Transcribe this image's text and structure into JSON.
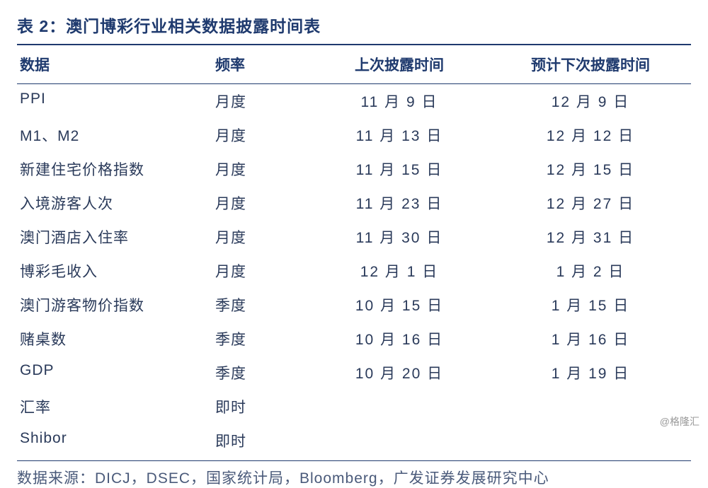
{
  "title": "表 2：澳门博彩行业相关数据披露时间表",
  "columns": {
    "data": "数据",
    "freq": "频率",
    "last": "上次披露时间",
    "next": "预计下次披露时间"
  },
  "rows": [
    {
      "data": "PPI",
      "freq": "月度",
      "last": "11 月 9 日",
      "next": "12 月 9 日"
    },
    {
      "data": "M1、M2",
      "freq": "月度",
      "last": "11 月 13 日",
      "next": "12 月 12 日"
    },
    {
      "data": "新建住宅价格指数",
      "freq": "月度",
      "last": "11 月 15 日",
      "next": "12 月 15 日"
    },
    {
      "data": "入境游客人次",
      "freq": "月度",
      "last": "11 月 23 日",
      "next": "12 月 27 日"
    },
    {
      "data": "澳门酒店入住率",
      "freq": "月度",
      "last": "11 月 30 日",
      "next": "12 月 31 日"
    },
    {
      "data": "博彩毛收入",
      "freq": "月度",
      "last": "12 月 1 日",
      "next": "1 月 2 日"
    },
    {
      "data": "澳门游客物价指数",
      "freq": "季度",
      "last": "10 月 15 日",
      "next": "1 月 15 日"
    },
    {
      "data": "赌桌数",
      "freq": "季度",
      "last": "10 月 16 日",
      "next": "1 月 16 日"
    },
    {
      "data": "GDP",
      "freq": "季度",
      "last": "10 月 20 日",
      "next": "1 月 19 日"
    },
    {
      "data": "汇率",
      "freq": "即时",
      "last": "",
      "next": ""
    },
    {
      "data": "Shibor",
      "freq": "即时",
      "last": "",
      "next": ""
    }
  ],
  "source": "数据来源：DICJ，DSEC，国家统计局，Bloomberg，广发证券发展研究中心",
  "watermark": "@格隆汇",
  "styling": {
    "title_color": "#1f3a6e",
    "border_color": "#1f3a6e",
    "text_color": "#2a3a5a",
    "source_color": "#4a5a7a",
    "background_color": "#ffffff",
    "title_fontsize": 23,
    "header_fontsize": 21,
    "body_fontsize": 21,
    "source_fontsize": 21,
    "col_widths": {
      "data": 280,
      "freq": 130,
      "last": 260,
      "next": 280
    },
    "col_align": {
      "data": "left",
      "freq": "left",
      "last": "center",
      "next": "center"
    }
  }
}
